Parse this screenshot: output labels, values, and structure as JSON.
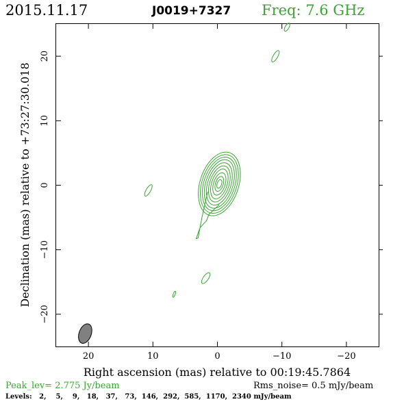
{
  "header": {
    "date": "2015.11.17",
    "source": "J0019+7327",
    "freq": "Freq: 7.6 GHz"
  },
  "colors": {
    "contour": "#3aa532",
    "axis": "#000000",
    "beam_fill": "#808080"
  },
  "footer": {
    "peak": "Peak_lev=  2.775 Jy/beam",
    "rms": "Rms_noise=  0.5 mJy/beam",
    "levels": "Levels:   2,    5,    9,   18,   37,   73,  146,  292,  585,  1170,  2340 mJy/beam"
  },
  "chart_data": {
    "type": "contour",
    "xlabel": "Right ascension (mas) relative to 00:19:45.7864",
    "ylabel": "Declination (mas) relative to +73:27:30.018",
    "xlim": [
      25,
      -25
    ],
    "ylim": [
      -25,
      25
    ],
    "x_ticks": [
      20,
      10,
      0,
      -10,
      -20
    ],
    "y_ticks": [
      20,
      10,
      0,
      -10,
      -20
    ],
    "x_tick_labels": [
      "20",
      "10",
      "0",
      "−10",
      "−20"
    ],
    "y_tick_labels": [
      "20",
      "10",
      "0",
      "−10",
      "−20"
    ],
    "levels_mJy_per_beam": [
      2,
      5,
      9,
      18,
      37,
      73,
      146,
      292,
      585,
      1170,
      2340
    ],
    "peak_Jy_per_beam": 2.775,
    "rms_noise_mJy_per_beam": 0.5,
    "core": {
      "x": -0.3,
      "y": 0.2,
      "pa_deg": 18
    },
    "core_contours": [
      {
        "a": 3.0,
        "b": 5.1
      },
      {
        "a": 2.7,
        "b": 4.7
      },
      {
        "a": 2.4,
        "b": 4.3
      },
      {
        "a": 2.1,
        "b": 3.9
      },
      {
        "a": 1.8,
        "b": 3.4
      },
      {
        "a": 1.5,
        "b": 2.9
      },
      {
        "a": 1.2,
        "b": 2.4
      },
      {
        "a": 0.9,
        "b": 1.8
      },
      {
        "a": 0.6,
        "b": 1.2
      },
      {
        "a": 0.35,
        "b": 0.7
      }
    ],
    "jet_outline": [
      [
        1.5,
        -1.0
      ],
      [
        2.4,
        -5.0
      ],
      [
        3.0,
        -8.2
      ],
      [
        3.3,
        -8.3
      ],
      [
        2.7,
        -6.6
      ],
      [
        1.7,
        -5.5
      ],
      [
        1.3,
        -4.5
      ],
      [
        -0.3,
        -3.0
      ]
    ],
    "islands": [
      {
        "x": 10.7,
        "y": -0.8,
        "a": 0.35,
        "b": 1.0,
        "pa_deg": 30
      },
      {
        "x": -9.0,
        "y": 20.0,
        "a": 0.35,
        "b": 1.0,
        "pa_deg": 30
      },
      {
        "x": -10.8,
        "y": 24.5,
        "a": 0.3,
        "b": 0.7,
        "pa_deg": 30
      },
      {
        "x": 1.8,
        "y": -14.4,
        "a": 0.4,
        "b": 1.0,
        "pa_deg": 35
      },
      {
        "x": 6.7,
        "y": -16.9,
        "a": 0.15,
        "b": 0.5,
        "pa_deg": 20
      }
    ],
    "beam": {
      "x": 20.5,
      "y": -23.0,
      "major": 3.0,
      "minor": 1.4,
      "pa_deg": 20
    }
  }
}
